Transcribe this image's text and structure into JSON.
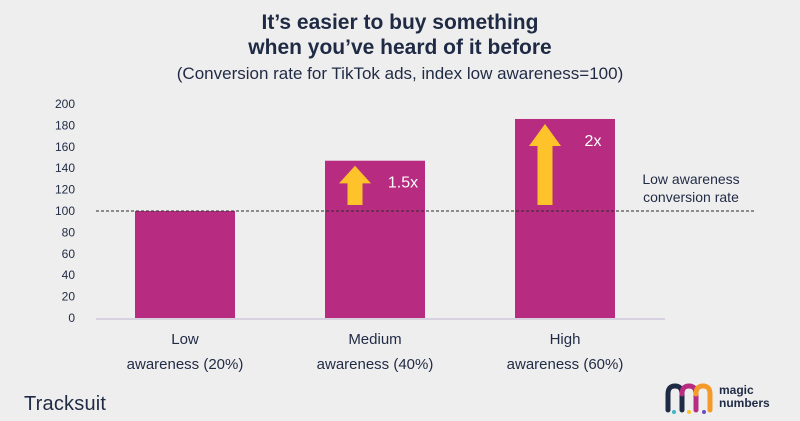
{
  "chart_data": {
    "type": "bar",
    "title_line1": "It’s easier to buy something",
    "title_line2": "when you’ve heard of it before",
    "subtitle": "(Conversion rate for TikTok ads, index low awareness=100)",
    "categories": [
      [
        "Low",
        "awareness (20%)"
      ],
      [
        "Medium",
        "awareness (40%)"
      ],
      [
        "High",
        "awareness (60%)"
      ]
    ],
    "values": [
      100,
      147,
      186
    ],
    "multipliers": [
      "",
      "1.5x",
      "2x"
    ],
    "ylim": [
      0,
      200
    ],
    "yticks": [
      0,
      20,
      40,
      60,
      80,
      100,
      120,
      140,
      160,
      180,
      200
    ],
    "reference_line": {
      "value": 100,
      "label_line1": "Low awareness",
      "label_line2": "conversion rate"
    },
    "grid": false,
    "colors": {
      "bar": "#b72c80",
      "arrow": "#fec22b",
      "axis": "#c9c0d8",
      "text": "#1f2a44"
    }
  },
  "branding": {
    "left_logo": "Tracksuit",
    "right_logo_line1": "magic",
    "right_logo_line2": "numbers",
    "right_logo_icon": "magic-numbers-mn-logo-icon"
  }
}
